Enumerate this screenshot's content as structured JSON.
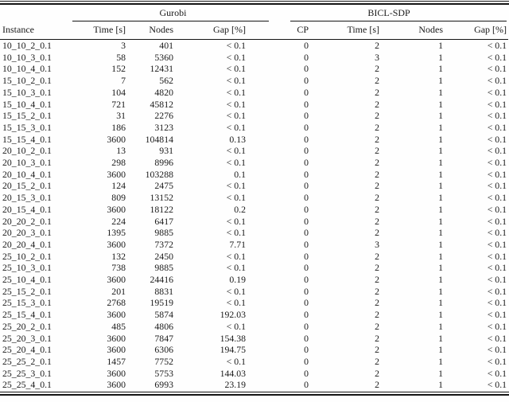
{
  "table": {
    "row_header": "Instance",
    "groups": [
      {
        "label": "Gurobi",
        "columns": [
          "Time [s]",
          "Nodes",
          "Gap [%]"
        ]
      },
      {
        "label": "BICL-SDP",
        "columns": [
          "CP",
          "Time [s]",
          "Nodes",
          "Gap [%]"
        ]
      }
    ],
    "cell_names": [
      "instance-cell",
      "gurobi-time-cell",
      "gurobi-nodes-cell",
      "gurobi-gap-cell",
      "bicl-cp-cell",
      "bicl-time-cell",
      "bicl-nodes-cell",
      "bicl-gap-cell"
    ],
    "rows": [
      [
        "10_10_2_0.1",
        "3",
        "401",
        "< 0.1",
        "0",
        "2",
        "1",
        "< 0.1"
      ],
      [
        "10_10_3_0.1",
        "58",
        "5360",
        "< 0.1",
        "0",
        "3",
        "1",
        "< 0.1"
      ],
      [
        "10_10_4_0.1",
        "152",
        "12431",
        "< 0.1",
        "0",
        "2",
        "1",
        "< 0.1"
      ],
      [
        "15_10_2_0.1",
        "7",
        "562",
        "< 0.1",
        "0",
        "2",
        "1",
        "< 0.1"
      ],
      [
        "15_10_3_0.1",
        "104",
        "4820",
        "< 0.1",
        "0",
        "2",
        "1",
        "< 0.1"
      ],
      [
        "15_10_4_0.1",
        "721",
        "45812",
        "< 0.1",
        "0",
        "2",
        "1",
        "< 0.1"
      ],
      [
        "15_15_2_0.1",
        "31",
        "2276",
        "< 0.1",
        "0",
        "2",
        "1",
        "< 0.1"
      ],
      [
        "15_15_3_0.1",
        "186",
        "3123",
        "< 0.1",
        "0",
        "2",
        "1",
        "< 0.1"
      ],
      [
        "15_15_4_0.1",
        "3600",
        "104814",
        "0.13",
        "0",
        "2",
        "1",
        "< 0.1"
      ],
      [
        "20_10_2_0.1",
        "13",
        "931",
        "< 0.1",
        "0",
        "2",
        "1",
        "< 0.1"
      ],
      [
        "20_10_3_0.1",
        "298",
        "8996",
        "< 0.1",
        "0",
        "2",
        "1",
        "< 0.1"
      ],
      [
        "20_10_4_0.1",
        "3600",
        "103288",
        "0.1",
        "0",
        "2",
        "1",
        "< 0.1"
      ],
      [
        "20_15_2_0.1",
        "124",
        "2475",
        "< 0.1",
        "0",
        "2",
        "1",
        "< 0.1"
      ],
      [
        "20_15_3_0.1",
        "809",
        "13152",
        "< 0.1",
        "0",
        "2",
        "1",
        "< 0.1"
      ],
      [
        "20_15_4_0.1",
        "3600",
        "18122",
        "0.2",
        "0",
        "2",
        "1",
        "< 0.1"
      ],
      [
        "20_20_2_0.1",
        "224",
        "6417",
        "< 0.1",
        "0",
        "2",
        "1",
        "< 0.1"
      ],
      [
        "20_20_3_0.1",
        "1395",
        "9885",
        "< 0.1",
        "0",
        "2",
        "1",
        "< 0.1"
      ],
      [
        "20_20_4_0.1",
        "3600",
        "7372",
        "7.71",
        "0",
        "3",
        "1",
        "< 0.1"
      ],
      [
        "25_10_2_0.1",
        "132",
        "2450",
        "< 0.1",
        "0",
        "2",
        "1",
        "< 0.1"
      ],
      [
        "25_10_3_0.1",
        "738",
        "9885",
        "< 0.1",
        "0",
        "2",
        "1",
        "< 0.1"
      ],
      [
        "25_10_4_0.1",
        "3600",
        "24416",
        "0.19",
        "0",
        "2",
        "1",
        "< 0.1"
      ],
      [
        "25_15_2_0.1",
        "201",
        "8831",
        "< 0.1",
        "0",
        "2",
        "1",
        "< 0.1"
      ],
      [
        "25_15_3_0.1",
        "2768",
        "19519",
        "< 0.1",
        "0",
        "2",
        "1",
        "< 0.1"
      ],
      [
        "25_15_4_0.1",
        "3600",
        "5874",
        "192.03",
        "0",
        "2",
        "1",
        "< 0.1"
      ],
      [
        "25_20_2_0.1",
        "485",
        "4806",
        "< 0.1",
        "0",
        "2",
        "1",
        "< 0.1"
      ],
      [
        "25_20_3_0.1",
        "3600",
        "7847",
        "154.38",
        "0",
        "2",
        "1",
        "< 0.1"
      ],
      [
        "25_20_4_0.1",
        "3600",
        "6306",
        "194.75",
        "0",
        "2",
        "1",
        "< 0.1"
      ],
      [
        "25_25_2_0.1",
        "1457",
        "7752",
        "< 0.1",
        "0",
        "2",
        "1",
        "< 0.1"
      ],
      [
        "25_25_3_0.1",
        "3600",
        "5753",
        "144.03",
        "0",
        "2",
        "1",
        "< 0.1"
      ],
      [
        "25_25_4_0.1",
        "3600",
        "6993",
        "23.19",
        "0",
        "2",
        "1",
        "< 0.1"
      ]
    ]
  }
}
